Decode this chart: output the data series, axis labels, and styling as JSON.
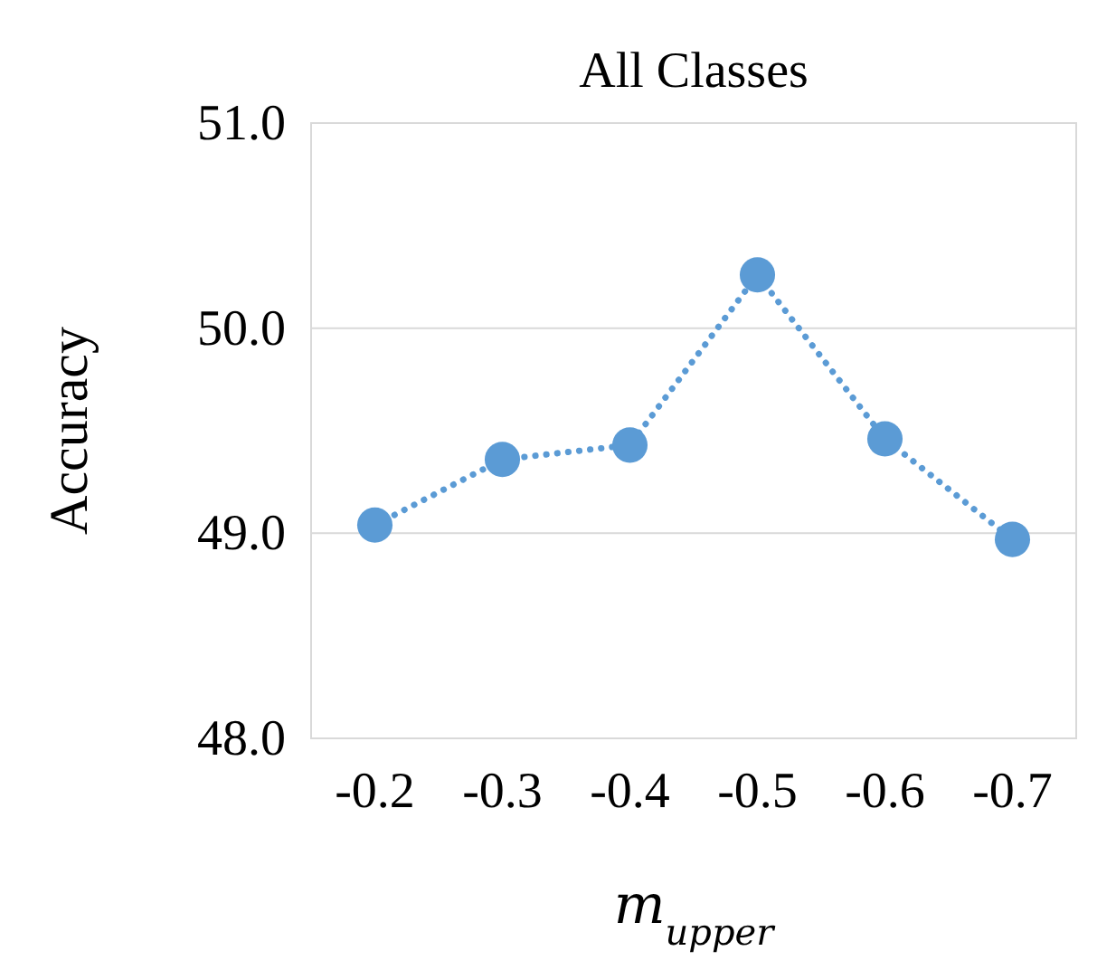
{
  "chart_data": {
    "type": "line",
    "title": "All Classes",
    "xlabel": "m$_{upper}$",
    "ylabel": "Accuracy",
    "categories": [
      "-0.2",
      "-0.3",
      "-0.4",
      "-0.5",
      "-0.6",
      "-0.7"
    ],
    "series": [
      {
        "color": "#5b9bd5",
        "values": [
          49.04,
          49.36,
          49.43,
          50.26,
          49.46,
          48.97
        ]
      }
    ],
    "ylim": [
      48,
      51
    ],
    "yticks": [
      {
        "value": 48,
        "label": "48.0"
      },
      {
        "value": 49,
        "label": "49.0"
      },
      {
        "value": 50,
        "label": "50.0"
      },
      {
        "value": 51,
        "label": "51.0"
      }
    ],
    "grid": "y",
    "marker": "circle",
    "line_style": "dotted"
  }
}
